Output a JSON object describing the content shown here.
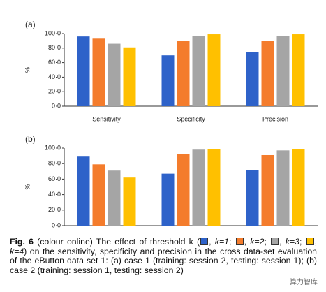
{
  "chart_data": [
    {
      "type": "bar",
      "panel": "(a)",
      "ylabel": "%",
      "categories": [
        "Sensitivity",
        "Specificity",
        "Precision"
      ],
      "series": [
        {
          "name": "k=1",
          "color": "#2e62c9",
          "values": [
            96,
            70,
            75
          ]
        },
        {
          "name": "k=2",
          "color": "#f47c2c",
          "values": [
            93,
            90,
            90
          ]
        },
        {
          "name": "k=3",
          "color": "#a5a5a5",
          "values": [
            86,
            97,
            97
          ]
        },
        {
          "name": "k=4",
          "color": "#ffc000",
          "values": [
            81,
            99,
            99
          ]
        }
      ],
      "ylim": [
        0,
        100
      ],
      "yticks": [
        {
          "value": 0,
          "label": "0·0"
        },
        {
          "value": 20,
          "label": "20·0"
        },
        {
          "value": 40,
          "label": "40·0"
        },
        {
          "value": 60,
          "label": "60·0"
        },
        {
          "value": 80,
          "label": "80·0"
        },
        {
          "value": 100,
          "label": "100·0"
        }
      ]
    },
    {
      "type": "bar",
      "panel": "(b)",
      "ylabel": "%",
      "categories": [
        "Sensitivity",
        "Specificity",
        "Precision"
      ],
      "series": [
        {
          "name": "k=1",
          "color": "#2e62c9",
          "values": [
            89,
            67,
            72
          ]
        },
        {
          "name": "k=2",
          "color": "#f47c2c",
          "values": [
            79,
            92,
            91
          ]
        },
        {
          "name": "k=3",
          "color": "#a5a5a5",
          "values": [
            71,
            98,
            97
          ]
        },
        {
          "name": "k=4",
          "color": "#ffc000",
          "values": [
            62,
            99,
            99
          ]
        }
      ],
      "ylim": [
        0,
        100
      ],
      "yticks": [
        {
          "value": 0,
          "label": "0·0"
        },
        {
          "value": 20,
          "label": "20·0"
        },
        {
          "value": 40,
          "label": "40·0"
        },
        {
          "value": 60,
          "label": "60·0"
        },
        {
          "value": 80,
          "label": "80·0"
        },
        {
          "value": 100,
          "label": "100·0"
        }
      ]
    }
  ],
  "caption": {
    "label": "Fig. 6",
    "intro": "(colour online) The effect of threshold k (",
    "swatch_separator": ",",
    "entry_separator": ";",
    "rest": ") on the sensitivity, specificity and precision in the cross data-set evaluation of the eButton data set 1: (a) case 1 (training: session 2, testing: session 1); (b) case 2 (training: session 1, testing: session 2)"
  },
  "watermark": "算力智库"
}
